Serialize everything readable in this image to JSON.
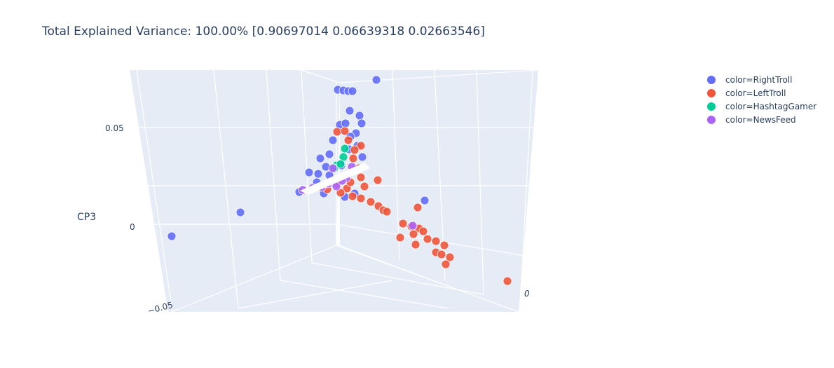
{
  "chart_data": {
    "type": "scatter",
    "title": "Total Explained Variance: 100.00% [0.90697014 0.06639318 0.02663546]",
    "z_axis_title": "CP3",
    "z_ticks": [
      "0.05",
      "0",
      "−0.05"
    ],
    "y_ticks": [
      "0"
    ],
    "legend": {
      "placement": "top-right",
      "entries": [
        {
          "label": "color=RightTroll",
          "color": "#636efa"
        },
        {
          "label": "color=LeftTroll",
          "color": "#ef553b"
        },
        {
          "label": "color=HashtagGamer",
          "color": "#00cc96"
        },
        {
          "label": "color=NewsFeed",
          "color": "#ab63fa"
        }
      ]
    },
    "series": [
      {
        "name": "color=RightTroll",
        "color": "#636efa"
      },
      {
        "name": "color=LeftTroll",
        "color": "#ef553b"
      },
      {
        "name": "color=HashtagGamer",
        "color": "#00cc96"
      },
      {
        "name": "color=NewsFeed",
        "color": "#ab63fa"
      }
    ]
  }
}
